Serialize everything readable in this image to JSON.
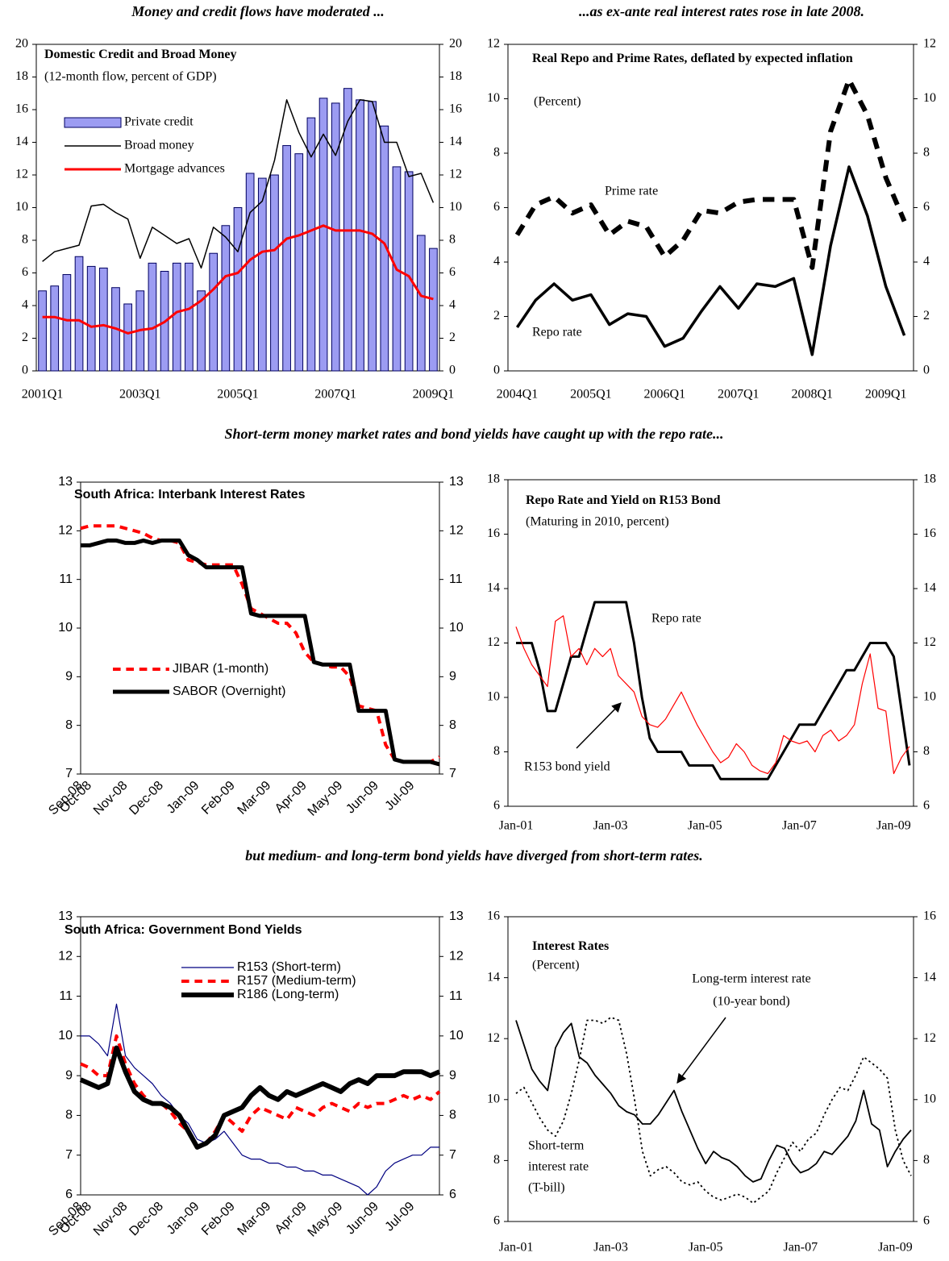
{
  "captions": [
    "Money and credit flows have moderated ...",
    "...as ex-ante real interest rates rose in late 2008.",
    "Short-term money market rates and bond yields have caught up with the repo rate...",
    "but medium- and long-term bond yields have diverged from short-term rates."
  ],
  "chart_data": [
    {
      "type": "bar",
      "title": "Domestic Credit and Broad Money",
      "subtitle": "(12-month flow, percent of GDP)",
      "categories": [
        "2001Q1",
        null,
        null,
        null,
        null,
        null,
        null,
        null,
        "2003Q1",
        null,
        null,
        null,
        null,
        null,
        null,
        null,
        "2005Q1",
        null,
        null,
        null,
        null,
        null,
        null,
        null,
        "2007Q1",
        null,
        null,
        null,
        null,
        null,
        null,
        null,
        "2009Q1"
      ],
      "series": [
        {
          "name": "Private credit",
          "type": "bar",
          "color": "#9c9cf2",
          "values": [
            4.9,
            5.2,
            5.9,
            7.0,
            6.4,
            6.3,
            5.1,
            4.1,
            4.9,
            6.6,
            6.1,
            6.6,
            6.6,
            4.9,
            7.2,
            8.9,
            10.0,
            12.1,
            11.8,
            12.0,
            13.8,
            13.3,
            15.5,
            16.7,
            16.4,
            17.3,
            16.6,
            16.5,
            15.0,
            12.5,
            12.2,
            8.3,
            7.5
          ]
        },
        {
          "name": "Broad money",
          "type": "line",
          "color": "#000000",
          "values": [
            6.7,
            7.3,
            7.5,
            7.7,
            10.1,
            10.2,
            9.7,
            9.3,
            6.9,
            8.8,
            8.3,
            7.8,
            8.1,
            6.3,
            8.8,
            8.2,
            7.3,
            9.7,
            10.4,
            12.9,
            16.6,
            14.6,
            13.1,
            14.5,
            13.2,
            15.3,
            16.6,
            16.5,
            14.0,
            14.0,
            11.9,
            12.1,
            10.3
          ]
        },
        {
          "name": "Mortgage advances",
          "type": "line",
          "color": "#ff0000",
          "values": [
            3.3,
            3.3,
            3.1,
            3.1,
            2.7,
            2.8,
            2.6,
            2.3,
            2.5,
            2.6,
            3.0,
            3.6,
            3.8,
            4.3,
            5.0,
            5.8,
            6.0,
            6.8,
            7.3,
            7.4,
            8.1,
            8.3,
            8.6,
            8.9,
            8.6,
            8.6,
            8.6,
            8.4,
            7.8,
            6.2,
            5.8,
            4.6,
            4.4
          ]
        }
      ],
      "ylim": [
        0,
        20
      ],
      "yticks": [
        0,
        2,
        4,
        6,
        8,
        10,
        12,
        14,
        16,
        18,
        20
      ],
      "y2lim": [
        0,
        20
      ],
      "y2ticks": [
        0,
        2,
        4,
        6,
        8,
        10,
        12,
        14,
        16,
        18,
        20
      ]
    },
    {
      "type": "line",
      "title": "Real Repo and Prime Rates, deflated by expected inflation",
      "subtitle": "(Percent)",
      "categories": [
        "2004Q1",
        null,
        null,
        null,
        "2005Q1",
        null,
        null,
        null,
        "2006Q1",
        null,
        null,
        null,
        "2007Q1",
        null,
        null,
        null,
        "2008Q1",
        null,
        null,
        null,
        "2009Q1",
        null
      ],
      "series": [
        {
          "color": "#000000",
          "values": [
            1.6,
            2.6,
            3.2,
            2.6,
            2.8,
            1.7,
            2.1,
            2.0,
            0.9,
            1.2,
            2.2,
            3.1,
            2.3,
            3.2,
            3.1,
            3.4,
            0.6,
            4.6,
            7.5,
            5.7,
            3.1,
            1.3
          ]
        },
        {
          "color": "#000000",
          "style": "dashed",
          "values": [
            5.0,
            6.1,
            6.4,
            5.8,
            6.1,
            5.0,
            5.5,
            5.3,
            4.2,
            4.8,
            5.9,
            5.8,
            6.2,
            6.3,
            6.3,
            6.3,
            3.8,
            8.8,
            10.7,
            9.4,
            7.1,
            5.5
          ]
        }
      ],
      "annotations": [
        "Prime rate",
        "Repo rate"
      ],
      "ylim": [
        0,
        12
      ],
      "yticks": [
        0,
        2,
        4,
        6,
        8,
        10,
        12
      ],
      "y2lim": [
        0,
        12
      ],
      "y2ticks": [
        0,
        2,
        4,
        6,
        8,
        10,
        12
      ]
    },
    {
      "type": "line",
      "title": "South Africa: Interbank Interest Rates",
      "categories": [
        "Sep-08",
        "Oct-08",
        null,
        null,
        null,
        "Nov-08",
        null,
        null,
        null,
        "Dec-08",
        null,
        null,
        null,
        "Jan-09",
        null,
        null,
        null,
        "Feb-09",
        null,
        null,
        null,
        "Mar-09",
        null,
        null,
        null,
        "Apr-09",
        null,
        null,
        null,
        "May-09",
        null,
        null,
        null,
        "Jun-09",
        null,
        null,
        null,
        "Jul-09",
        null,
        null,
        null
      ],
      "series": [
        {
          "name": "JIBAR (1-month)",
          "color": "#ff0000",
          "style": "dashed",
          "values": [
            12.05,
            12.1,
            12.1,
            12.1,
            12.1,
            12.05,
            12.0,
            11.95,
            11.85,
            11.8,
            11.8,
            11.75,
            11.4,
            11.35,
            11.3,
            11.3,
            11.3,
            11.3,
            10.9,
            10.4,
            10.3,
            10.2,
            10.1,
            10.1,
            9.9,
            9.5,
            9.3,
            9.25,
            9.2,
            9.2,
            9.0,
            8.4,
            8.35,
            8.3,
            7.6,
            7.3,
            7.25,
            7.25,
            7.25,
            7.25,
            7.35
          ]
        },
        {
          "name": "SABOR (Overnight)",
          "color": "#000000",
          "values": [
            11.7,
            11.7,
            11.75,
            11.8,
            11.8,
            11.75,
            11.75,
            11.8,
            11.75,
            11.8,
            11.8,
            11.8,
            11.5,
            11.4,
            11.25,
            11.25,
            11.25,
            11.25,
            11.25,
            10.3,
            10.25,
            10.25,
            10.25,
            10.25,
            10.25,
            10.25,
            9.3,
            9.25,
            9.25,
            9.25,
            9.25,
            8.3,
            8.3,
            8.3,
            8.3,
            7.3,
            7.25,
            7.25,
            7.25,
            7.25,
            7.2
          ]
        }
      ],
      "ylim": [
        7,
        13
      ],
      "yticks": [
        7,
        8,
        9,
        10,
        11,
        12,
        13
      ],
      "y2lim": [
        7,
        13
      ],
      "y2ticks": [
        7,
        8,
        9,
        10,
        11,
        12,
        13
      ]
    },
    {
      "type": "line",
      "title": "Repo Rate and Yield on R153 Bond",
      "subtitle": "(Maturing in 2010, percent)",
      "categories": [
        "Jan-01",
        null,
        null,
        null,
        null,
        null,
        null,
        null,
        null,
        null,
        null,
        null,
        "Jan-03",
        null,
        null,
        null,
        null,
        null,
        null,
        null,
        null,
        null,
        null,
        null,
        "Jan-05",
        null,
        null,
        null,
        null,
        null,
        null,
        null,
        null,
        null,
        null,
        null,
        "Jan-07",
        null,
        null,
        null,
        null,
        null,
        null,
        null,
        null,
        null,
        null,
        null,
        "Jan-09",
        null,
        null
      ],
      "series": [
        {
          "color": "#000000",
          "values": [
            12,
            12,
            12,
            11,
            9.5,
            9.5,
            10.5,
            11.5,
            11.5,
            12.5,
            13.5,
            13.5,
            13.5,
            13.5,
            13.5,
            12,
            10,
            8.5,
            8,
            8,
            8,
            8,
            7.5,
            7.5,
            7.5,
            7.5,
            7,
            7,
            7,
            7,
            7,
            7,
            7,
            7.5,
            8,
            8.5,
            9,
            9,
            9,
            9.5,
            10,
            10.5,
            11,
            11,
            11.5,
            12,
            12,
            12,
            11.5,
            9.5,
            7.5
          ]
        },
        {
          "color": "#ff0000",
          "values": [
            12.6,
            11.8,
            11.2,
            10.8,
            10.4,
            12.8,
            13.0,
            11.5,
            11.8,
            11.2,
            11.8,
            11.5,
            11.8,
            10.8,
            10.5,
            10.2,
            9.3,
            9.0,
            8.9,
            9.2,
            9.7,
            10.2,
            9.6,
            9.0,
            8.5,
            8.0,
            7.6,
            7.8,
            8.3,
            8.0,
            7.5,
            7.3,
            7.2,
            7.6,
            8.6,
            8.4,
            8.3,
            8.4,
            8.0,
            8.6,
            8.8,
            8.4,
            8.6,
            9.0,
            10.5,
            11.6,
            9.6,
            9.5,
            7.2,
            7.8,
            8.2
          ]
        }
      ],
      "annotations": [
        "Repo rate",
        "R153 bond yield"
      ],
      "ylim": [
        6,
        18
      ],
      "yticks": [
        6,
        8,
        10,
        12,
        14,
        16,
        18
      ],
      "y2lim": [
        6,
        18
      ],
      "y2ticks": [
        6,
        8,
        10,
        12,
        14,
        16,
        18
      ]
    },
    {
      "type": "line",
      "title": "South Africa: Government Bond Yields",
      "categories": [
        "Sep-08",
        "Oct-08",
        null,
        null,
        null,
        "Nov-08",
        null,
        null,
        null,
        "Dec-08",
        null,
        null,
        null,
        "Jan-09",
        null,
        null,
        null,
        "Feb-09",
        null,
        null,
        null,
        "Mar-09",
        null,
        null,
        null,
        "Apr-09",
        null,
        null,
        null,
        "May-09",
        null,
        null,
        null,
        "Jun-09",
        null,
        null,
        null,
        "Jul-09",
        null,
        null,
        null
      ],
      "series": [
        {
          "name": "R153 (Short-term)",
          "color": "#000080",
          "values": [
            10.0,
            10.0,
            9.8,
            9.5,
            10.8,
            9.5,
            9.2,
            9.0,
            8.8,
            8.5,
            8.3,
            8.0,
            7.8,
            7.4,
            7.3,
            7.4,
            7.6,
            7.3,
            7.0,
            6.9,
            6.9,
            6.8,
            6.8,
            6.7,
            6.7,
            6.6,
            6.6,
            6.5,
            6.5,
            6.4,
            6.3,
            6.2,
            6.0,
            6.2,
            6.6,
            6.8,
            6.9,
            7.0,
            7.0,
            7.2,
            7.2
          ]
        },
        {
          "name": "R157 (Medium-term)",
          "color": "#ff0000",
          "style": "dashed",
          "values": [
            9.3,
            9.2,
            9.0,
            9.0,
            10.0,
            9.3,
            8.8,
            8.5,
            8.3,
            8.3,
            8.1,
            7.8,
            7.6,
            7.2,
            7.3,
            7.6,
            8.0,
            7.8,
            7.6,
            8.0,
            8.2,
            8.1,
            8.0,
            7.9,
            8.2,
            8.1,
            8.0,
            8.2,
            8.3,
            8.2,
            8.1,
            8.3,
            8.2,
            8.3,
            8.3,
            8.4,
            8.5,
            8.4,
            8.5,
            8.4,
            8.6
          ]
        },
        {
          "name": "R186 (Long-term)",
          "color": "#000000",
          "values": [
            8.9,
            8.8,
            8.7,
            8.8,
            9.7,
            9.1,
            8.6,
            8.4,
            8.3,
            8.3,
            8.2,
            8.0,
            7.6,
            7.2,
            7.3,
            7.5,
            8.0,
            8.1,
            8.2,
            8.5,
            8.7,
            8.5,
            8.4,
            8.6,
            8.5,
            8.6,
            8.7,
            8.8,
            8.7,
            8.6,
            8.8,
            8.9,
            8.8,
            9.0,
            9.0,
            9.0,
            9.1,
            9.1,
            9.1,
            9.0,
            9.1
          ]
        }
      ],
      "ylim": [
        6,
        13
      ],
      "yticks": [
        6,
        7,
        8,
        9,
        10,
        11,
        12,
        13
      ],
      "y2lim": [
        6,
        13
      ],
      "y2ticks": [
        6,
        7,
        8,
        9,
        10,
        11,
        12,
        13
      ]
    },
    {
      "type": "line",
      "title": "Interest Rates",
      "subtitle": "(Percent)",
      "categories": [
        "Jan-01",
        null,
        null,
        null,
        null,
        null,
        null,
        null,
        null,
        null,
        null,
        null,
        "Jan-03",
        null,
        null,
        null,
        null,
        null,
        null,
        null,
        null,
        null,
        null,
        null,
        "Jan-05",
        null,
        null,
        null,
        null,
        null,
        null,
        null,
        null,
        null,
        null,
        null,
        "Jan-07",
        null,
        null,
        null,
        null,
        null,
        null,
        null,
        null,
        null,
        null,
        null,
        "Jan-09",
        null,
        null
      ],
      "series": [
        {
          "color": "#000000",
          "values": [
            12.6,
            11.8,
            11.0,
            10.6,
            10.3,
            11.7,
            12.2,
            12.5,
            11.4,
            11.2,
            10.8,
            10.5,
            10.2,
            9.8,
            9.6,
            9.5,
            9.2,
            9.2,
            9.5,
            9.9,
            10.3,
            9.6,
            9.0,
            8.4,
            7.9,
            8.3,
            8.1,
            8.0,
            7.8,
            7.5,
            7.3,
            7.4,
            8.0,
            8.5,
            8.4,
            7.9,
            7.6,
            7.7,
            7.9,
            8.3,
            8.2,
            8.5,
            8.8,
            9.3,
            10.3,
            9.2,
            9.0,
            7.8,
            8.3,
            8.7,
            9.0
          ]
        },
        {
          "color": "#000000",
          "style": "dotted",
          "values": [
            10.2,
            10.4,
            9.9,
            9.4,
            9.0,
            8.8,
            9.3,
            10.2,
            11.3,
            12.6,
            12.6,
            12.5,
            12.7,
            12.6,
            11.5,
            10.0,
            8.3,
            7.5,
            7.7,
            7.8,
            7.6,
            7.3,
            7.2,
            7.3,
            7.0,
            6.8,
            6.7,
            6.8,
            6.9,
            6.8,
            6.6,
            6.8,
            7.0,
            7.6,
            8.1,
            8.6,
            8.3,
            8.7,
            8.9,
            9.5,
            10.0,
            10.4,
            10.3,
            10.8,
            11.4,
            11.2,
            11.0,
            10.7,
            9.0,
            8.0,
            7.5
          ]
        }
      ],
      "annotations": [
        "Long-term interest rate",
        "(10-year bond)",
        "Short-term",
        "interest rate",
        "(T-bill)"
      ],
      "ylim": [
        6,
        16
      ],
      "yticks": [
        6,
        8,
        10,
        12,
        14,
        16
      ],
      "y2lim": [
        6,
        16
      ],
      "y2ticks": [
        6,
        8,
        10,
        12,
        14,
        16
      ]
    }
  ]
}
